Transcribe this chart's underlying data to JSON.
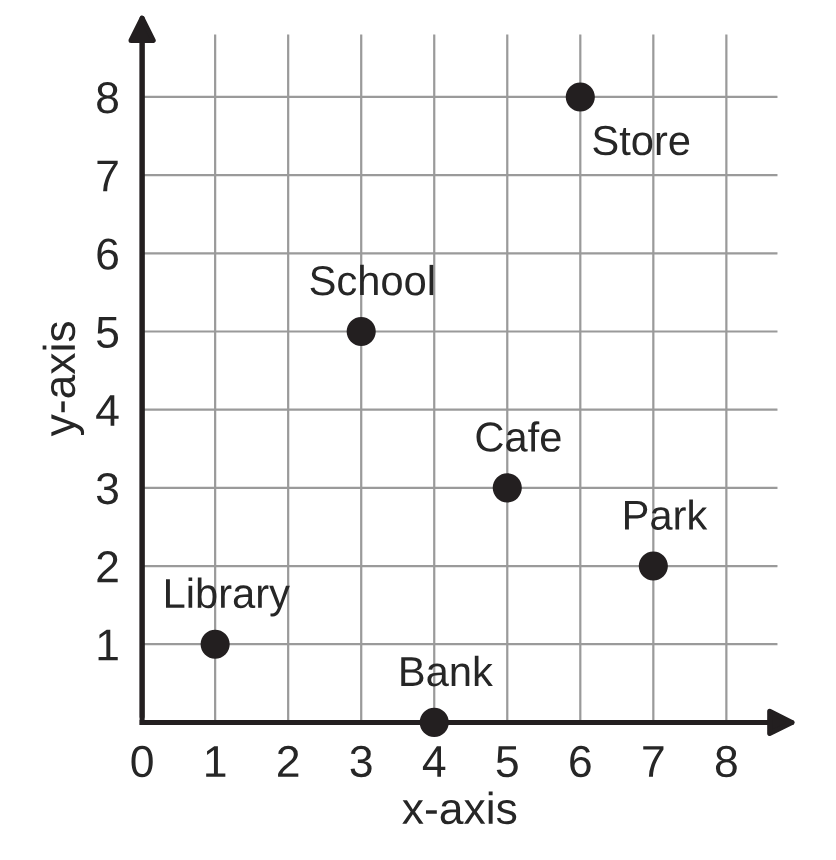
{
  "chart_data": {
    "type": "scatter",
    "xlabel": "x-axis",
    "ylabel": "y-axis",
    "series": [
      {
        "color": "#231f20",
        "x": [
          1,
          3,
          4,
          5,
          6,
          7
        ],
        "values": [
          1,
          5,
          0,
          3,
          8,
          2
        ]
      }
    ],
    "annotations": [
      {
        "text": "Library",
        "x": 1,
        "y": 1
      },
      {
        "text": "School",
        "x": 3,
        "y": 5
      },
      {
        "text": "Bank",
        "x": 4,
        "y": 0
      },
      {
        "text": "Cafe",
        "x": 5,
        "y": 3
      },
      {
        "text": "Store",
        "x": 6,
        "y": 8
      },
      {
        "text": "Park",
        "x": 7,
        "y": 2
      }
    ],
    "xlim": [
      0,
      8.7
    ],
    "ylim": [
      0,
      8.8
    ],
    "xticks": [
      0,
      1,
      2,
      3,
      4,
      5,
      6,
      7,
      8
    ],
    "yticks": [
      {
        "value": 0,
        "label": null
      },
      1,
      2,
      3,
      4,
      5,
      6,
      7,
      8
    ],
    "grid": true,
    "marker": "circle",
    "legend": false
  }
}
